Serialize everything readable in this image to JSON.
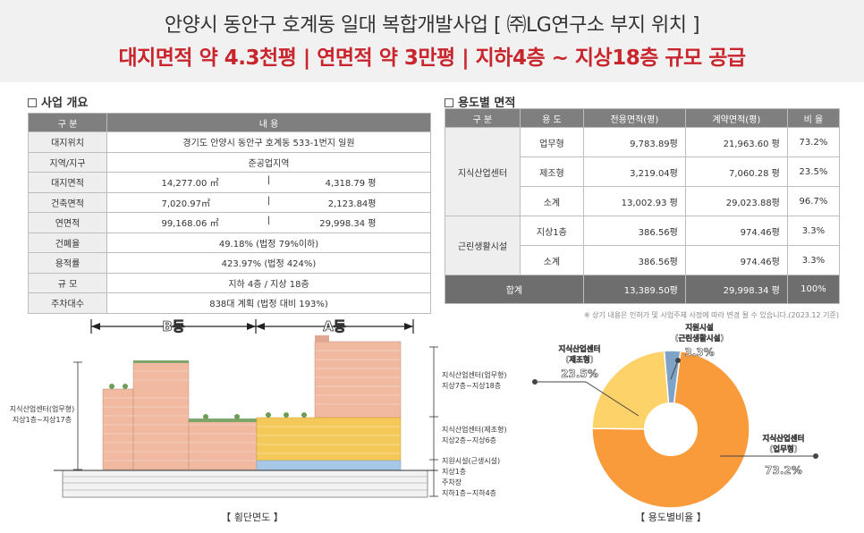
{
  "header": {
    "line1": "안양시 동안구 호계동 일대 복합개발사업 [ ㈜LG연구소 부지 위치 ]",
    "line2": "대지면적 약 4.3천평  |  연면적 약 3만평  |  지하4층 ~ 지상18층 규모 공급"
  },
  "overview": {
    "title": "사업 개요",
    "col_label": "구 분",
    "col_value": "내 용",
    "rows": {
      "location": {
        "label": "대지위치",
        "value": "경기도 안양시 동안구 호계동 533-1번지 일원"
      },
      "zone": {
        "label": "지역/지구",
        "value": "준공업지역"
      },
      "site_area": {
        "label": "대지면적",
        "m2": "14,277.00 ㎡",
        "sep": "|",
        "pyeong": "4,318.79 평"
      },
      "building_area": {
        "label": "건축면적",
        "m2": "7,020.97㎡",
        "sep": "|",
        "pyeong": "2,123.84평"
      },
      "floor_area": {
        "label": "연면적",
        "m2": "99,168.06 ㎡",
        "sep": "|",
        "pyeong": "29,998.34 평"
      },
      "coverage": {
        "label": "건폐율",
        "value": "49.18% (법정 79%이하)"
      },
      "far": {
        "label": "용적률",
        "value": "423.97% (법정 424%)"
      },
      "scale": {
        "label": "규 모",
        "value": "지하 4층  /  지상 18층"
      },
      "parking": {
        "label": "주차대수",
        "value": "838대 계획  (법정 대비 193%)"
      }
    }
  },
  "usage": {
    "title": "용도별 면적",
    "headers": {
      "category": "구 분",
      "use": "용 도",
      "exclusive": "전용면적(평)",
      "contract": "계약면적(평)",
      "ratio": "비 율"
    },
    "groups": {
      "center": "지식산업센터",
      "support": "근린생활시설"
    },
    "rows": {
      "office": {
        "use": "업무형",
        "exclusive": "9,783.89평",
        "contract": "21,963.60 평",
        "ratio": "73.2%"
      },
      "manufacturing": {
        "use": "제조형",
        "exclusive": "3,219.04평",
        "contract": "7,060.28 평",
        "ratio": "23.5%"
      },
      "center_subtotal": {
        "use": "소계",
        "exclusive": "13,002.93 평",
        "contract": "29,023.88평",
        "ratio": "96.7%"
      },
      "support_b1": {
        "use": "지상1층",
        "exclusive": "386.56평",
        "contract": "974.46평",
        "ratio": "3.3%"
      },
      "support_subtotal": {
        "use": "소계",
        "exclusive": "386.56평",
        "contract": "974.46평",
        "ratio": "3.3%"
      },
      "total": {
        "use": "합계",
        "exclusive": "13,389.50평",
        "contract": "29,998.34 평",
        "ratio": "100%"
      }
    },
    "note": "※ 상기 내용은 인허가 및 사업주체 사정에 따라 변경 될 수 있습니다.(2023.12 기준)"
  },
  "section_diagram": {
    "caption": "【 횡단면도 】",
    "building_b": "B동",
    "building_a": "A동",
    "left_label_1": "지식산업센터(업무형)",
    "left_label_2": "지상1층~지상17층",
    "right_office_1": "지식산업센터(업무형)",
    "right_office_2": "지상7층~지상18층",
    "right_mfg_1": "지식산업센터(제조형)",
    "right_mfg_2": "지상2층~지상6층",
    "right_support": "지원시설(근생시설)",
    "right_support_2": "지상1층",
    "right_parking_1": "주차장",
    "right_parking_2": "지하1층~지하4층",
    "colors": {
      "office": "#f0b9a0",
      "manufacturing": "#f4c95a",
      "support": "#a7c7e7",
      "parking": "#e6e6e6"
    }
  },
  "pie": {
    "caption": "【 용도별비율 】",
    "colors": {
      "office": "#f99a3b",
      "manufacturing": "#fdd268",
      "support": "#7ea3c7"
    },
    "labels": {
      "support_1": "지원시설",
      "support_2": "(근린생활시설)",
      "support_pct": "3.3%",
      "mfg_1": "지식산업센터",
      "mfg_2": "(제조형)",
      "mfg_pct": "23.5%",
      "office_1": "지식산업센터",
      "office_2": "(업무형)",
      "office_pct": "73.2%"
    }
  },
  "chart_data": {
    "type": "pie",
    "slices": [
      {
        "name": "지식산업센터(업무형)",
        "value": 73.2
      },
      {
        "name": "지식산업센터(제조형)",
        "value": 23.5
      },
      {
        "name": "지원시설(근린생활시설)",
        "value": 3.3
      }
    ]
  }
}
